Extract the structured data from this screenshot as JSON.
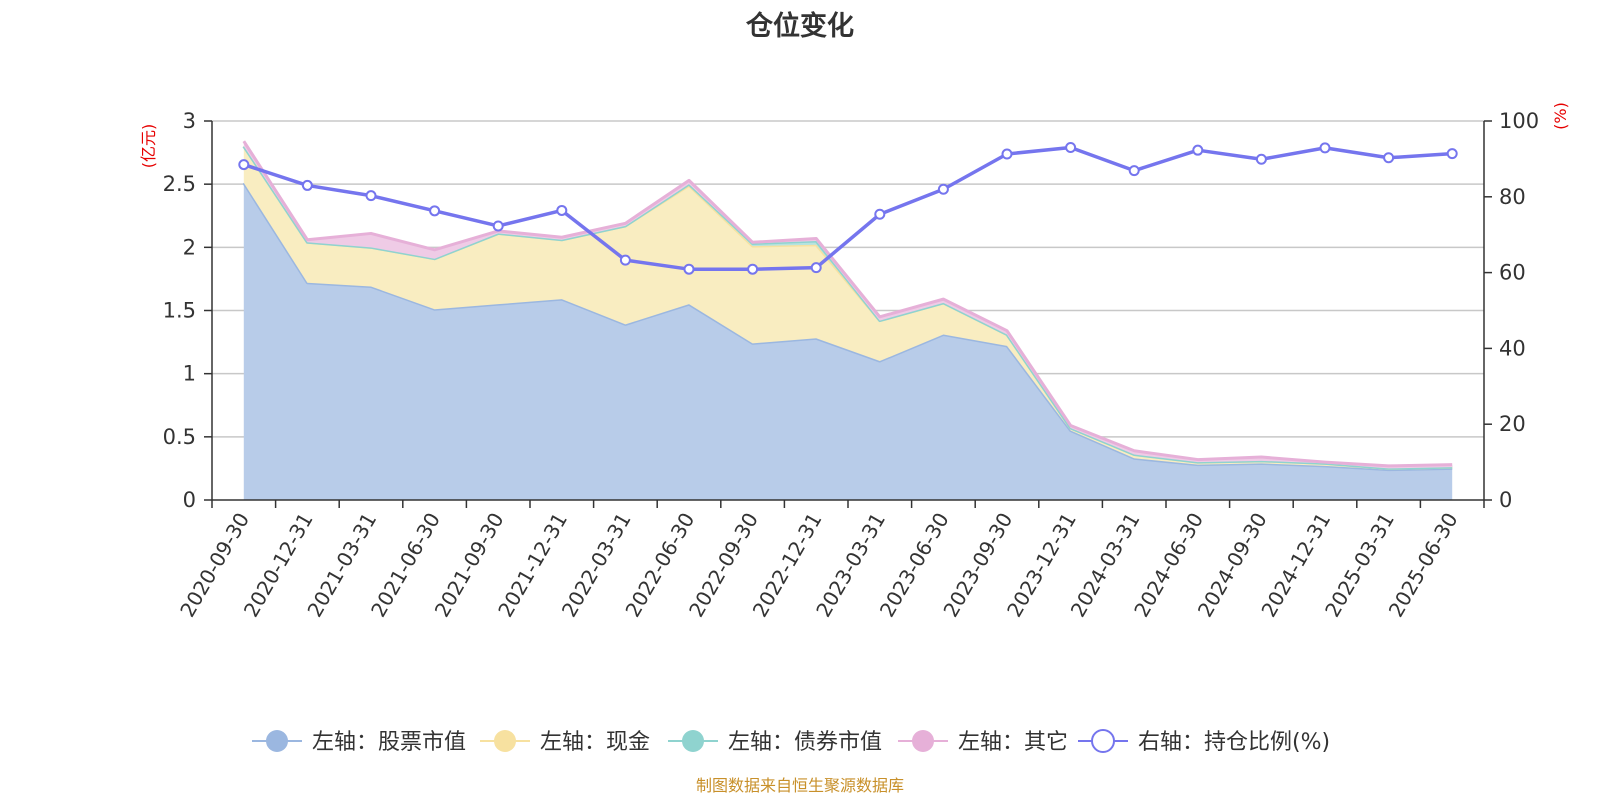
{
  "chart_data": {
    "type": "area",
    "title": "仓位变化",
    "left_unit": "(亿元)",
    "right_unit": "(%)",
    "categories": [
      "2020-09-30",
      "2020-12-31",
      "2021-03-31",
      "2021-06-30",
      "2021-09-30",
      "2021-12-31",
      "2022-03-31",
      "2022-06-30",
      "2022-09-30",
      "2022-12-31",
      "2023-03-31",
      "2023-06-30",
      "2023-09-30",
      "2023-12-31",
      "2024-03-31",
      "2024-06-30",
      "2024-09-30",
      "2024-12-31",
      "2025-03-31",
      "2025-06-30"
    ],
    "left_axis": {
      "min": 0,
      "max": 3,
      "ticks": [
        0,
        0.5,
        1,
        1.5,
        2,
        2.5,
        3
      ],
      "tick_labels": [
        "0",
        "0.5",
        "1",
        "1.5",
        "2",
        "2.5",
        "3"
      ]
    },
    "right_axis": {
      "min": 0,
      "max": 100,
      "ticks": [
        0,
        20,
        40,
        60,
        80,
        100
      ],
      "tick_labels": [
        "0",
        "20",
        "40",
        "60",
        "80",
        "100"
      ]
    },
    "grid": true,
    "legend_position": "bottom",
    "series": [
      {
        "name": "左轴：股票市值",
        "axis": "left",
        "kind": "stacked-area",
        "color": "#9bb7e0",
        "fill": "#b8cce9",
        "values": [
          2.51,
          1.72,
          1.69,
          1.51,
          1.55,
          1.59,
          1.39,
          1.55,
          1.24,
          1.28,
          1.1,
          1.31,
          1.22,
          0.55,
          0.33,
          0.28,
          0.29,
          0.27,
          0.24,
          0.25
        ]
      },
      {
        "name": "左轴：现金",
        "axis": "left",
        "kind": "stacked-area",
        "color": "#f7e1a0",
        "fill": "#f9edc1",
        "values": [
          0.29,
          0.32,
          0.31,
          0.4,
          0.56,
          0.47,
          0.78,
          0.94,
          0.77,
          0.74,
          0.32,
          0.25,
          0.09,
          0.02,
          0.03,
          0.02,
          0.02,
          0.02,
          0.01,
          0.01
        ]
      },
      {
        "name": "左轴：债券市值",
        "axis": "left",
        "kind": "stacked-area",
        "color": "#8fd3cf",
        "fill": "#b6e3e0",
        "values": [
          0,
          0,
          0,
          0,
          0,
          0,
          0,
          0.01,
          0.02,
          0.03,
          0,
          0,
          0,
          0,
          0,
          0,
          0,
          0,
          0,
          0
        ]
      },
      {
        "name": "左轴：其它",
        "axis": "left",
        "kind": "stacked-area",
        "color": "#e6b0d8",
        "fill": "#efcbe6",
        "values": [
          0.04,
          0.02,
          0.11,
          0.07,
          0.02,
          0.02,
          0.02,
          0.03,
          0.01,
          0.02,
          0.03,
          0.03,
          0.03,
          0.02,
          0.03,
          0.02,
          0.03,
          0.01,
          0.02,
          0.02
        ]
      },
      {
        "name": "右轴：持仓比例(%)",
        "axis": "right",
        "kind": "line",
        "color": "#7575ee",
        "values": [
          88.5,
          83.0,
          80.3,
          76.3,
          72.3,
          76.4,
          63.3,
          60.9,
          60.9,
          61.3,
          75.4,
          82.0,
          91.3,
          93.0,
          86.9,
          92.3,
          89.9,
          92.9,
          90.3,
          91.4
        ]
      }
    ],
    "source_note": "制图数据来自恒生聚源数据库"
  }
}
